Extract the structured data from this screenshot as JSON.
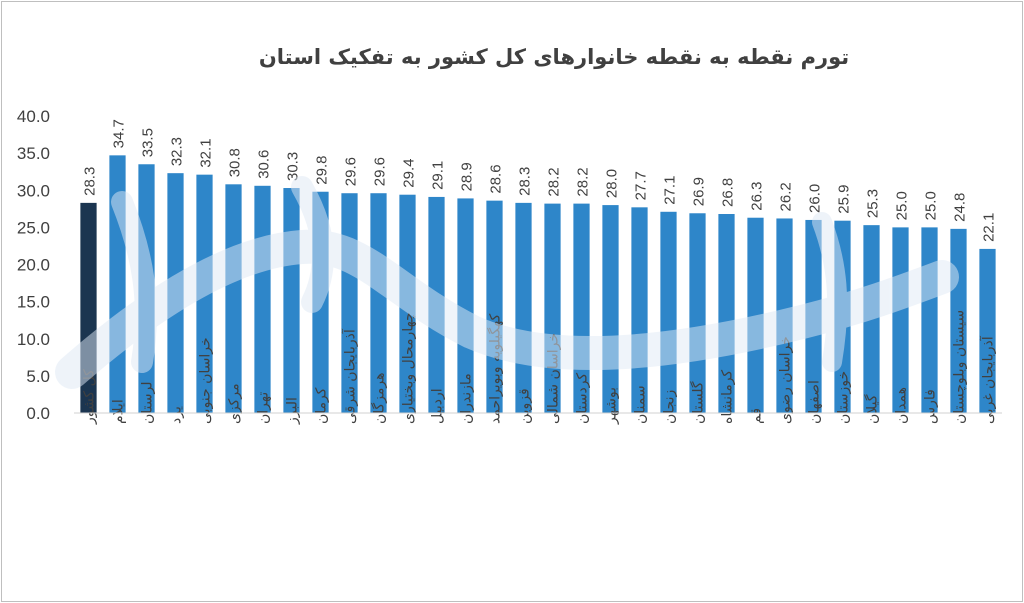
{
  "chart_data": {
    "type": "bar",
    "title": "تورم  نقطه به نقطه خانوارهای کل کشور به تفکیک استان",
    "xlabel": "",
    "ylabel": "",
    "ylim": [
      0,
      40
    ],
    "yticks": [
      "0.0",
      "5.0",
      "10.0",
      "15.0",
      "20.0",
      "25.0",
      "30.0",
      "35.0",
      "40.0"
    ],
    "grid": false,
    "legend": "none",
    "colors": {
      "bar": "#2E86C9",
      "highlight": "#1B3550",
      "text": "#404040"
    },
    "highlight_category": "کل کشور",
    "categories": [
      "کل کشور",
      "ایلام",
      "لرستان",
      "یزد",
      "خراسان جنوبی",
      "مرکزی",
      "تهران",
      "البرز",
      "کرمان",
      "آذربایجان شرقی",
      "هرمزگان",
      "چهارمحال وبختیاری",
      "اردبیل",
      "مازندران",
      "کهگیلویه وبویراحمد",
      "قزوین",
      "خراسان شمالی",
      "کردستان",
      "بوشهر",
      "سمنان",
      "زنجان",
      "گلستان",
      "کرمانشاه",
      "قم",
      "خراسان رضوی",
      "اصفهان",
      "خوزستان",
      "گیلان",
      "همدان",
      "فارس",
      "سیستان وبلوچستان",
      "آذربایجان غربی"
    ],
    "values": [
      28.3,
      34.7,
      33.5,
      32.3,
      32.1,
      30.8,
      30.6,
      30.3,
      29.8,
      29.6,
      29.6,
      29.4,
      29.1,
      28.9,
      28.6,
      28.3,
      28.2,
      28.2,
      28.0,
      27.7,
      27.1,
      26.9,
      26.8,
      26.3,
      26.2,
      26.0,
      25.9,
      25.3,
      25.0,
      25.0,
      24.8,
      22.1
    ],
    "data_labels": [
      "28.3",
      "34.7",
      "33.5",
      "32.3",
      "32.1",
      "30.8",
      "30.6",
      "30.3",
      "29.8",
      "29.6",
      "29.6",
      "29.4",
      "29.1",
      "28.9",
      "28.6",
      "28.3",
      "28.2",
      "28.2",
      "28.0",
      "27.7",
      "27.1",
      "26.9",
      "26.8",
      "26.3",
      "26.2",
      "26.0",
      "25.9",
      "25.3",
      "25.0",
      "25.0",
      "24.8",
      "22.1"
    ]
  }
}
